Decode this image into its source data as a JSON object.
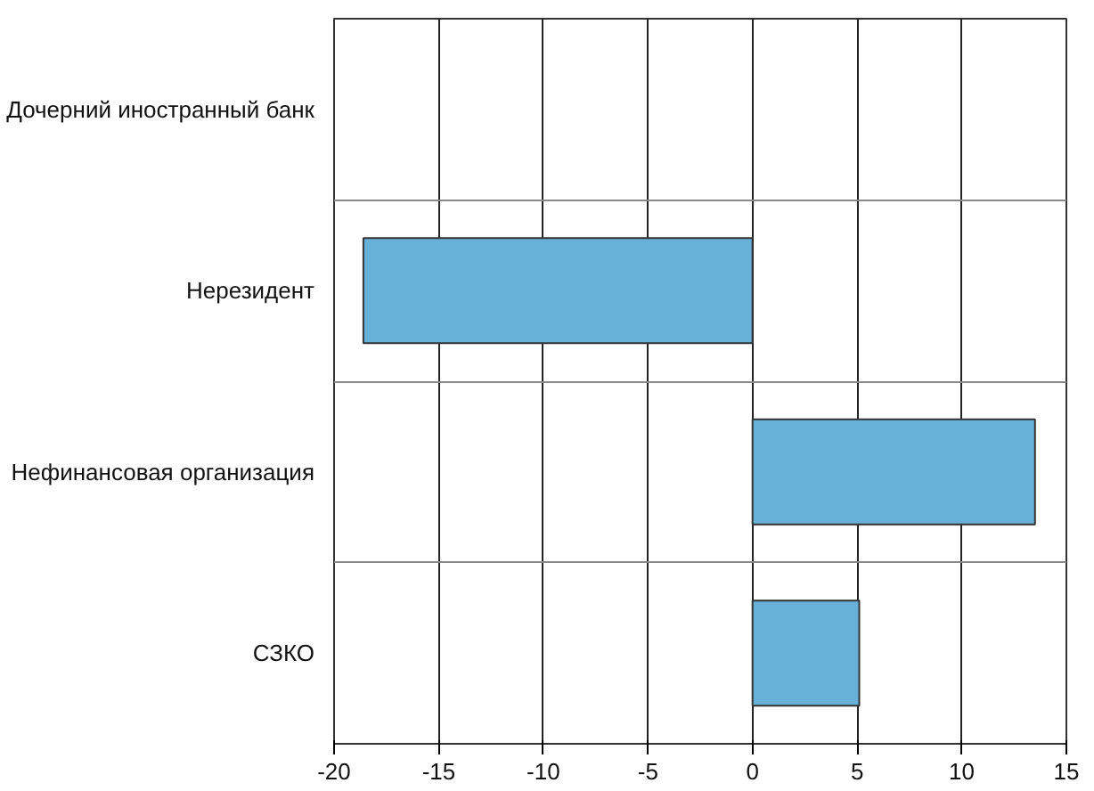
{
  "chart_data": {
    "type": "bar",
    "orientation": "horizontal",
    "categories": [
      "Дочерний иностранный банк",
      "Нерезидент",
      "Нефинансовая организация",
      "СЗКО"
    ],
    "values": [
      null,
      -18.6,
      13.5,
      5.1
    ],
    "color": "#67b1d8",
    "xlim": [
      -20,
      15
    ],
    "xticks": [
      -20,
      -15,
      -10,
      -5,
      0,
      5,
      10,
      15
    ],
    "grid": true
  }
}
